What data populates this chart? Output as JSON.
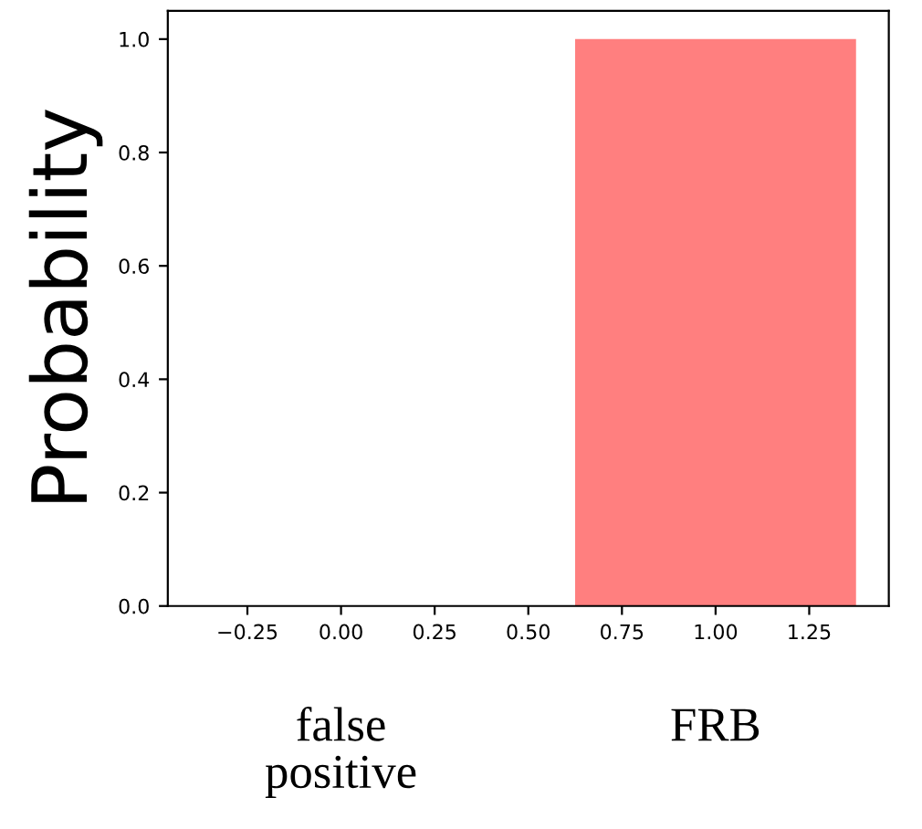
{
  "chart_data": {
    "type": "bar",
    "ylabel": "Probability",
    "x": [
      0,
      1
    ],
    "values": [
      0.0,
      1.0
    ],
    "color": "#ff7f7f",
    "xlim": [
      -0.4625,
      1.4625
    ],
    "xticks": [
      {
        "value": -0.25,
        "label": "−0.25"
      },
      {
        "value": 0,
        "label": "0.00"
      },
      0.25,
      {
        "value": 0.5,
        "label": "0.50"
      },
      0.75,
      {
        "value": 1,
        "label": "1.00"
      },
      1.25
    ],
    "ylim": [
      0,
      1.05
    ],
    "yticks": [
      {
        "value": 0,
        "label": "0.0"
      },
      0.2,
      0.4,
      0.6,
      0.8,
      {
        "value": 1,
        "label": "1.0"
      }
    ],
    "annotations": [
      "false\npositive",
      "FRB"
    ],
    "grid": false,
    "legend": false
  }
}
